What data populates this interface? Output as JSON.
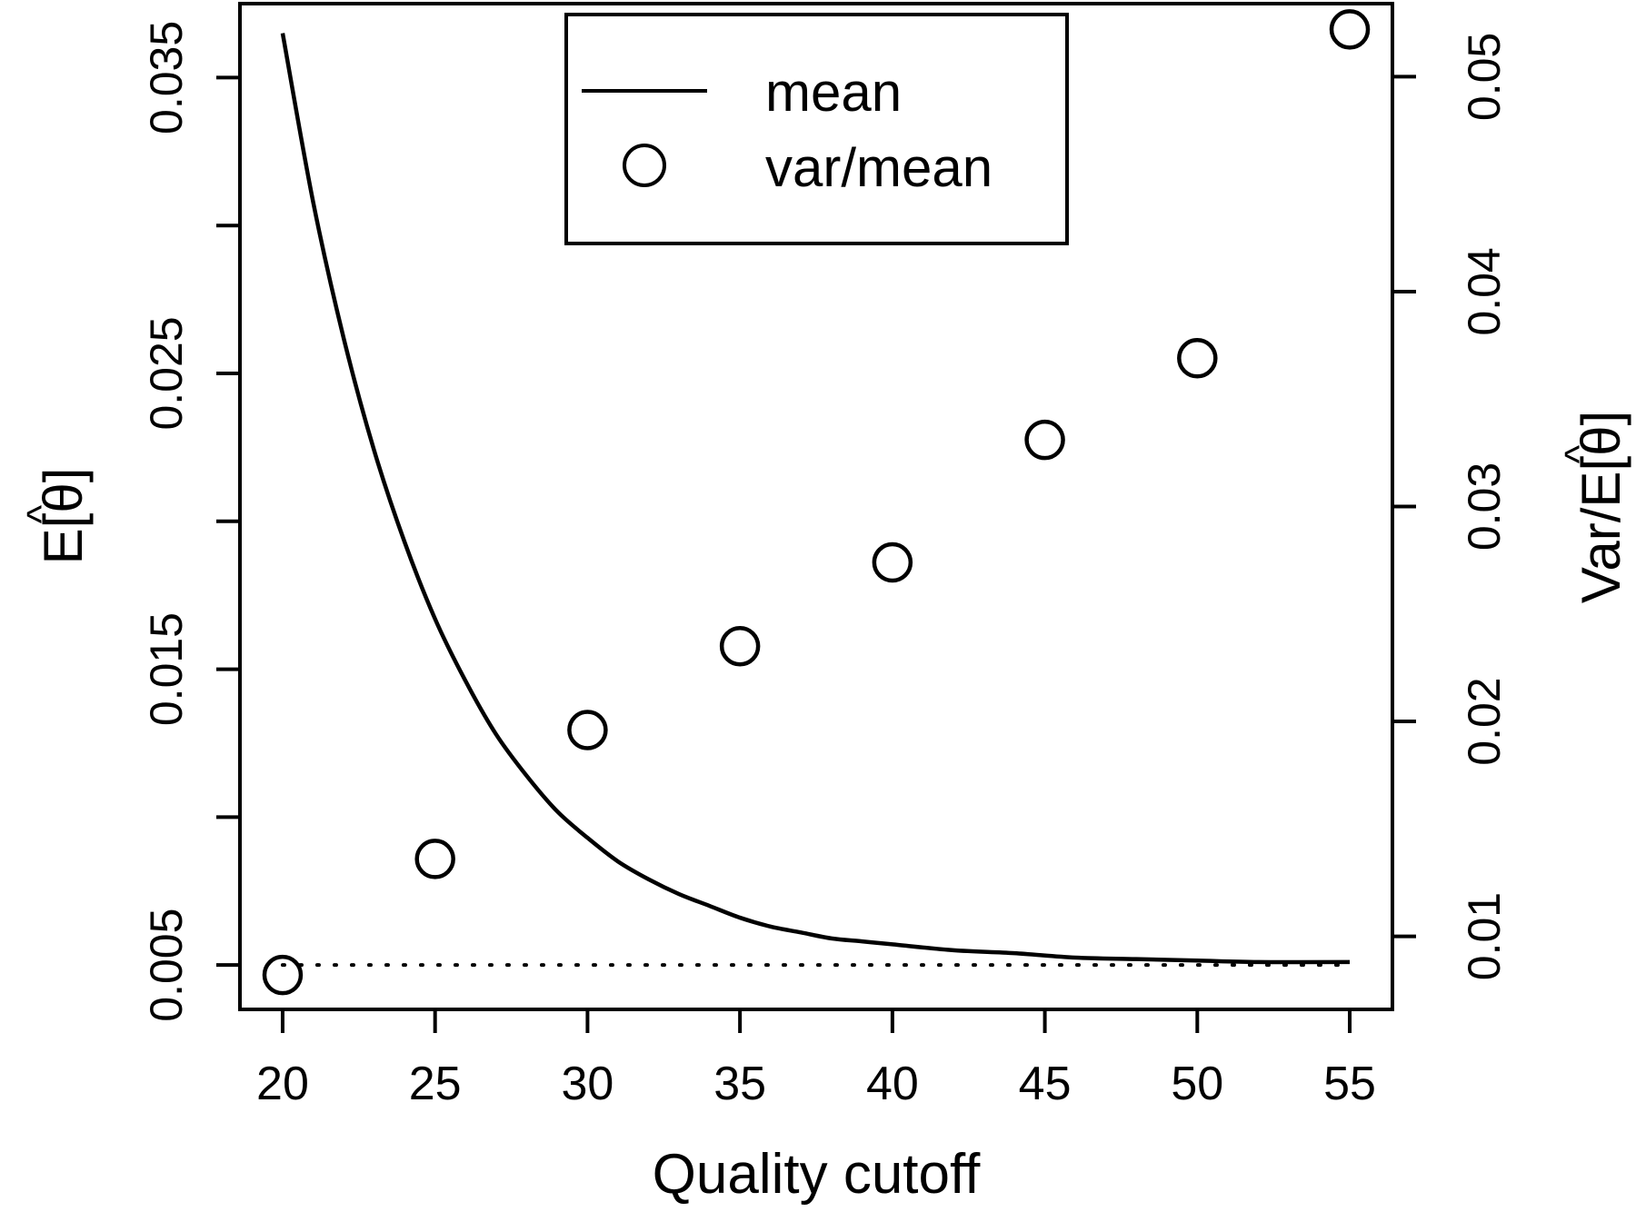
{
  "chart_data": {
    "type": "line",
    "xlabel": "Quality cutoff",
    "ylabel_left": "E[θ]",
    "ylabel_left_hat": "^",
    "ylabel_right": "Var/E[θ]",
    "ylabel_right_hat": "^",
    "x_ticks": [
      "20",
      "25",
      "30",
      "35",
      "40",
      "45",
      "50",
      "55"
    ],
    "x_tick_values": [
      20,
      25,
      30,
      35,
      40,
      45,
      50,
      55
    ],
    "xlim": [
      18.6,
      56.4
    ],
    "y_left_ticks_labeled": [
      "0.005",
      "0.015",
      "0.025",
      "0.035"
    ],
    "y_left_tick_values": [
      0.005,
      0.01,
      0.015,
      0.02,
      0.025,
      0.03,
      0.035
    ],
    "ylim_left": [
      0.0035,
      0.0375
    ],
    "y_right_ticks": [
      "0.01",
      "0.02",
      "0.03",
      "0.04",
      "0.05"
    ],
    "y_right_tick_values": [
      0.01,
      0.02,
      0.03,
      0.04,
      0.05
    ],
    "ylim_right": [
      0.0066,
      0.0534
    ],
    "series": [
      {
        "name": "mean",
        "style": "line",
        "axis": "left",
        "x": [
          20,
          21,
          22,
          23,
          24,
          25,
          26,
          27,
          28,
          29,
          30,
          31,
          32,
          33,
          34,
          35,
          36,
          37,
          38,
          39,
          40,
          42,
          44,
          46,
          48,
          50,
          52,
          55
        ],
        "y": [
          0.0365,
          0.0308,
          0.0262,
          0.0224,
          0.0193,
          0.0167,
          0.0146,
          0.0128,
          0.0114,
          0.0102,
          0.0093,
          0.0085,
          0.0079,
          0.0074,
          0.007,
          0.0066,
          0.0063,
          0.0061,
          0.0059,
          0.0058,
          0.0057,
          0.0055,
          0.0054,
          0.00525,
          0.0052,
          0.00515,
          0.0051,
          0.0051
        ]
      },
      {
        "name": "var/mean",
        "style": "circle",
        "axis": "right",
        "x": [
          20,
          25,
          30,
          35,
          40,
          45,
          50,
          55
        ],
        "y": [
          0.0082,
          0.0136,
          0.0196,
          0.0235,
          0.0274,
          0.0331,
          0.0369,
          0.0522
        ]
      }
    ],
    "reference_line": {
      "style": "dotted",
      "axis": "left",
      "y": 0.005,
      "x_range": [
        20,
        55
      ]
    },
    "legend": {
      "position": "top-center",
      "entries": [
        {
          "label": "mean",
          "symbol": "line"
        },
        {
          "label": "var/mean",
          "symbol": "circle"
        }
      ]
    },
    "grid": false
  }
}
